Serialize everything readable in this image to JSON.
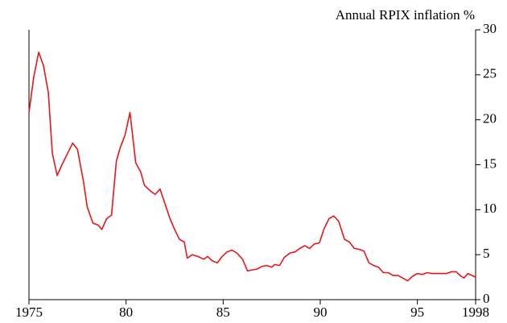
{
  "chart_data": {
    "type": "line",
    "title": "Annual RPIX inflation %",
    "x": [
      1975.0,
      1975.25,
      1975.5,
      1975.75,
      1976.0,
      1976.2,
      1976.45,
      1976.7,
      1976.95,
      1977.25,
      1977.5,
      1977.8,
      1978.0,
      1978.3,
      1978.55,
      1978.75,
      1979.0,
      1979.25,
      1979.5,
      1979.7,
      1979.95,
      1980.2,
      1980.5,
      1980.75,
      1980.95,
      1981.25,
      1981.5,
      1981.75,
      1982.0,
      1982.25,
      1982.5,
      1982.75,
      1983.0,
      1983.15,
      1983.4,
      1983.7,
      1984.0,
      1984.2,
      1984.45,
      1984.7,
      1984.95,
      1985.2,
      1985.45,
      1985.7,
      1986.0,
      1986.25,
      1986.5,
      1986.75,
      1987.0,
      1987.25,
      1987.5,
      1987.65,
      1987.9,
      1988.15,
      1988.45,
      1988.7,
      1988.95,
      1989.2,
      1989.45,
      1989.7,
      1989.95,
      1990.2,
      1990.45,
      1990.7,
      1990.95,
      1991.25,
      1991.5,
      1991.75,
      1992.0,
      1992.25,
      1992.5,
      1992.75,
      1993.0,
      1993.25,
      1993.5,
      1993.75,
      1994.0,
      1994.25,
      1994.5,
      1994.75,
      1995.0,
      1995.25,
      1995.5,
      1995.75,
      1996.0,
      1996.25,
      1996.5,
      1996.75,
      1997.0,
      1997.25,
      1997.4,
      1997.6,
      1998.0
    ],
    "series": [
      {
        "name": "Annual RPIX inflation",
        "color": "#e8151b",
        "axis": "y2",
        "values": [
          20.8,
          24.8,
          27.5,
          26.0,
          23.0,
          16.3,
          13.8,
          15.0,
          16.1,
          17.4,
          16.7,
          13.2,
          10.3,
          8.5,
          8.3,
          7.8,
          9.0,
          9.4,
          15.4,
          16.9,
          18.3,
          20.8,
          15.2,
          14.2,
          12.7,
          12.1,
          11.7,
          12.3,
          10.7,
          9.1,
          7.8,
          6.7,
          6.4,
          4.6,
          5.0,
          4.8,
          4.5,
          4.8,
          4.3,
          4.1,
          4.8,
          5.3,
          5.5,
          5.2,
          4.5,
          3.2,
          3.3,
          3.4,
          3.7,
          3.8,
          3.6,
          3.9,
          3.8,
          4.7,
          5.2,
          5.3,
          5.7,
          6.0,
          5.7,
          6.2,
          6.3,
          7.9,
          9.0,
          9.3,
          8.7,
          6.7,
          6.4,
          5.7,
          5.6,
          5.4,
          4.1,
          3.8,
          3.6,
          3.0,
          3.0,
          2.7,
          2.7,
          2.4,
          2.1,
          2.6,
          2.9,
          2.8,
          3.0,
          2.9,
          2.9,
          2.9,
          2.9,
          3.1,
          3.1,
          2.6,
          2.4,
          2.9,
          2.5
        ]
      }
    ],
    "xlim": [
      1975,
      1998
    ],
    "xticks": [
      1975,
      {
        "value": 1980,
        "label": "80"
      },
      {
        "value": 1985,
        "label": "85"
      },
      {
        "value": 1990,
        "label": "90"
      },
      {
        "value": 1995,
        "label": "95"
      },
      1998
    ],
    "y2lim": [
      0,
      30
    ],
    "y2ticks": [
      0,
      5,
      10,
      15,
      20,
      25,
      30
    ]
  }
}
